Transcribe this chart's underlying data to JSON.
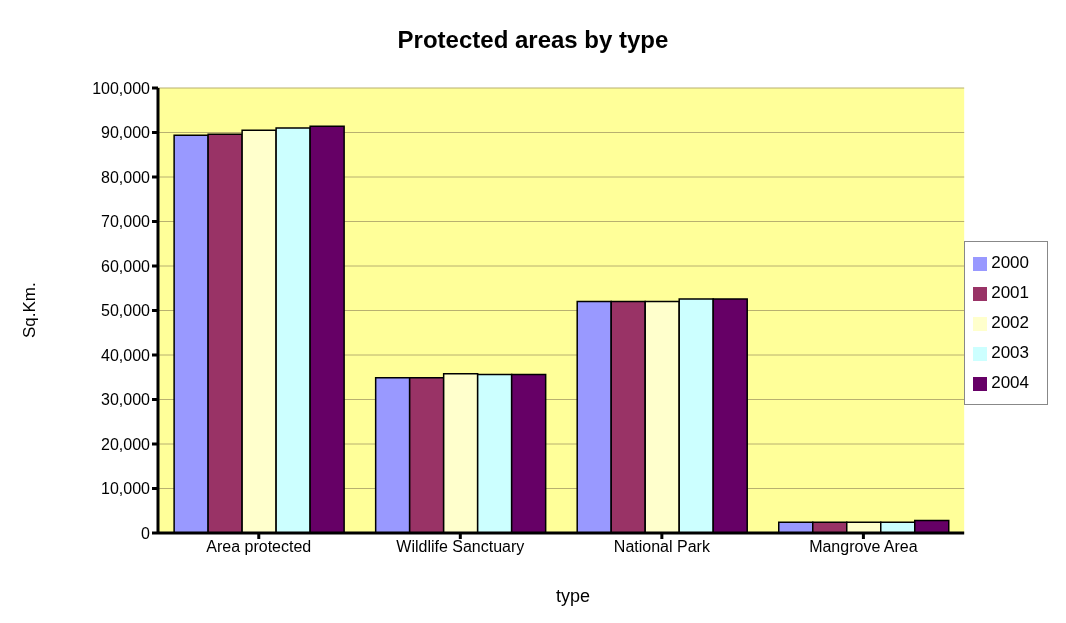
{
  "chart_data": {
    "type": "bar",
    "title": "Protected areas by type",
    "xlabel": "type",
    "ylabel": "Sq.Km.",
    "categories": [
      "Area protected",
      "Wildlife Sanctuary",
      "National Park",
      "Mangrove Area"
    ],
    "series": [
      {
        "name": "2000",
        "color": "#9999ff",
        "values": [
          89400,
          34900,
          52000,
          2400
        ]
      },
      {
        "name": "2001",
        "color": "#993366",
        "values": [
          89600,
          34900,
          52000,
          2400
        ]
      },
      {
        "name": "2002",
        "color": "#ffffcc",
        "values": [
          90500,
          35800,
          52000,
          2400
        ]
      },
      {
        "name": "2003",
        "color": "#ccffff",
        "values": [
          91000,
          35600,
          52600,
          2400
        ]
      },
      {
        "name": "2004",
        "color": "#660066",
        "values": [
          91400,
          35600,
          52600,
          2800
        ]
      }
    ],
    "ylim": [
      0,
      100000
    ],
    "yticks": [
      {
        "value": 0,
        "label": "0"
      },
      {
        "value": 10000,
        "label": "10,000"
      },
      {
        "value": 20000,
        "label": "20,000"
      },
      {
        "value": 30000,
        "label": "30,000"
      },
      {
        "value": 40000,
        "label": "40,000"
      },
      {
        "value": 50000,
        "label": "50,000"
      },
      {
        "value": 60000,
        "label": "60,000"
      },
      {
        "value": 70000,
        "label": "70,000"
      },
      {
        "value": 80000,
        "label": "80,000"
      },
      {
        "value": 90000,
        "label": "90,000"
      },
      {
        "value": 100000,
        "label": "100,000"
      }
    ],
    "grid": "y",
    "legend": "right"
  }
}
